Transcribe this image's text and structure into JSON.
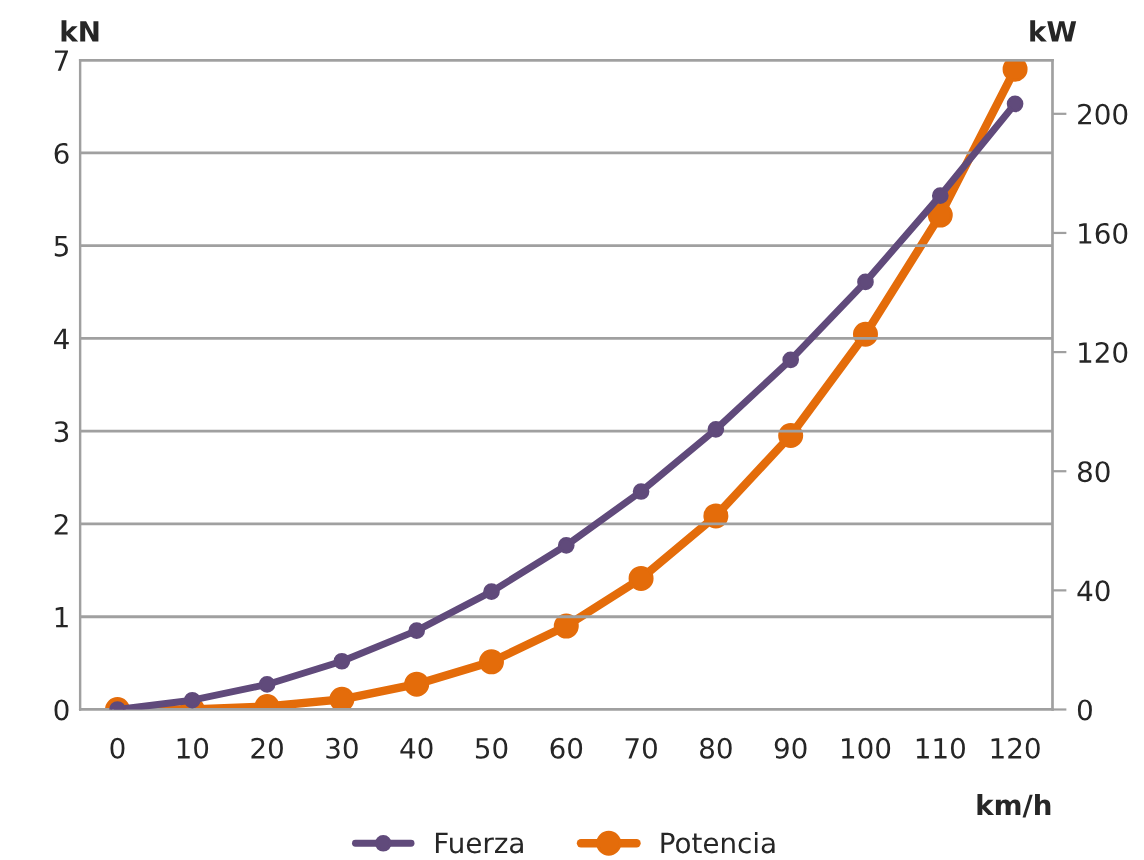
{
  "chart_data": {
    "type": "line",
    "categories": [
      "0",
      "10",
      "20",
      "30",
      "40",
      "50",
      "60",
      "70",
      "80",
      "90",
      "100",
      "110",
      "120"
    ],
    "xlabel": "km/h",
    "ylabel": "kN",
    "y2label": "kW",
    "series": [
      {
        "name": "Fuerza",
        "color": "#604a7b",
        "values": [
          0,
          0.1,
          0.27,
          0.52,
          0.85,
          1.27,
          1.77,
          2.35,
          3.02,
          3.77,
          4.61,
          5.54,
          6.53
        ]
      },
      {
        "name": "Potencia",
        "color": "#e46c0a",
        "axis": "y2",
        "values": [
          0,
          0,
          1,
          3.4,
          8.5,
          16,
          28,
          44,
          65,
          92,
          126,
          166,
          215
        ]
      }
    ],
    "ylim": [
      0,
      7
    ],
    "yticks": [
      0,
      1,
      2,
      3,
      4,
      5,
      6,
      7
    ],
    "y2lim": [
      0,
      218
    ],
    "y2ticks": [
      0,
      40,
      80,
      120,
      160,
      200
    ],
    "grid": "y",
    "legend": "bottom",
    "marker": "circle",
    "line_style": "solid"
  }
}
